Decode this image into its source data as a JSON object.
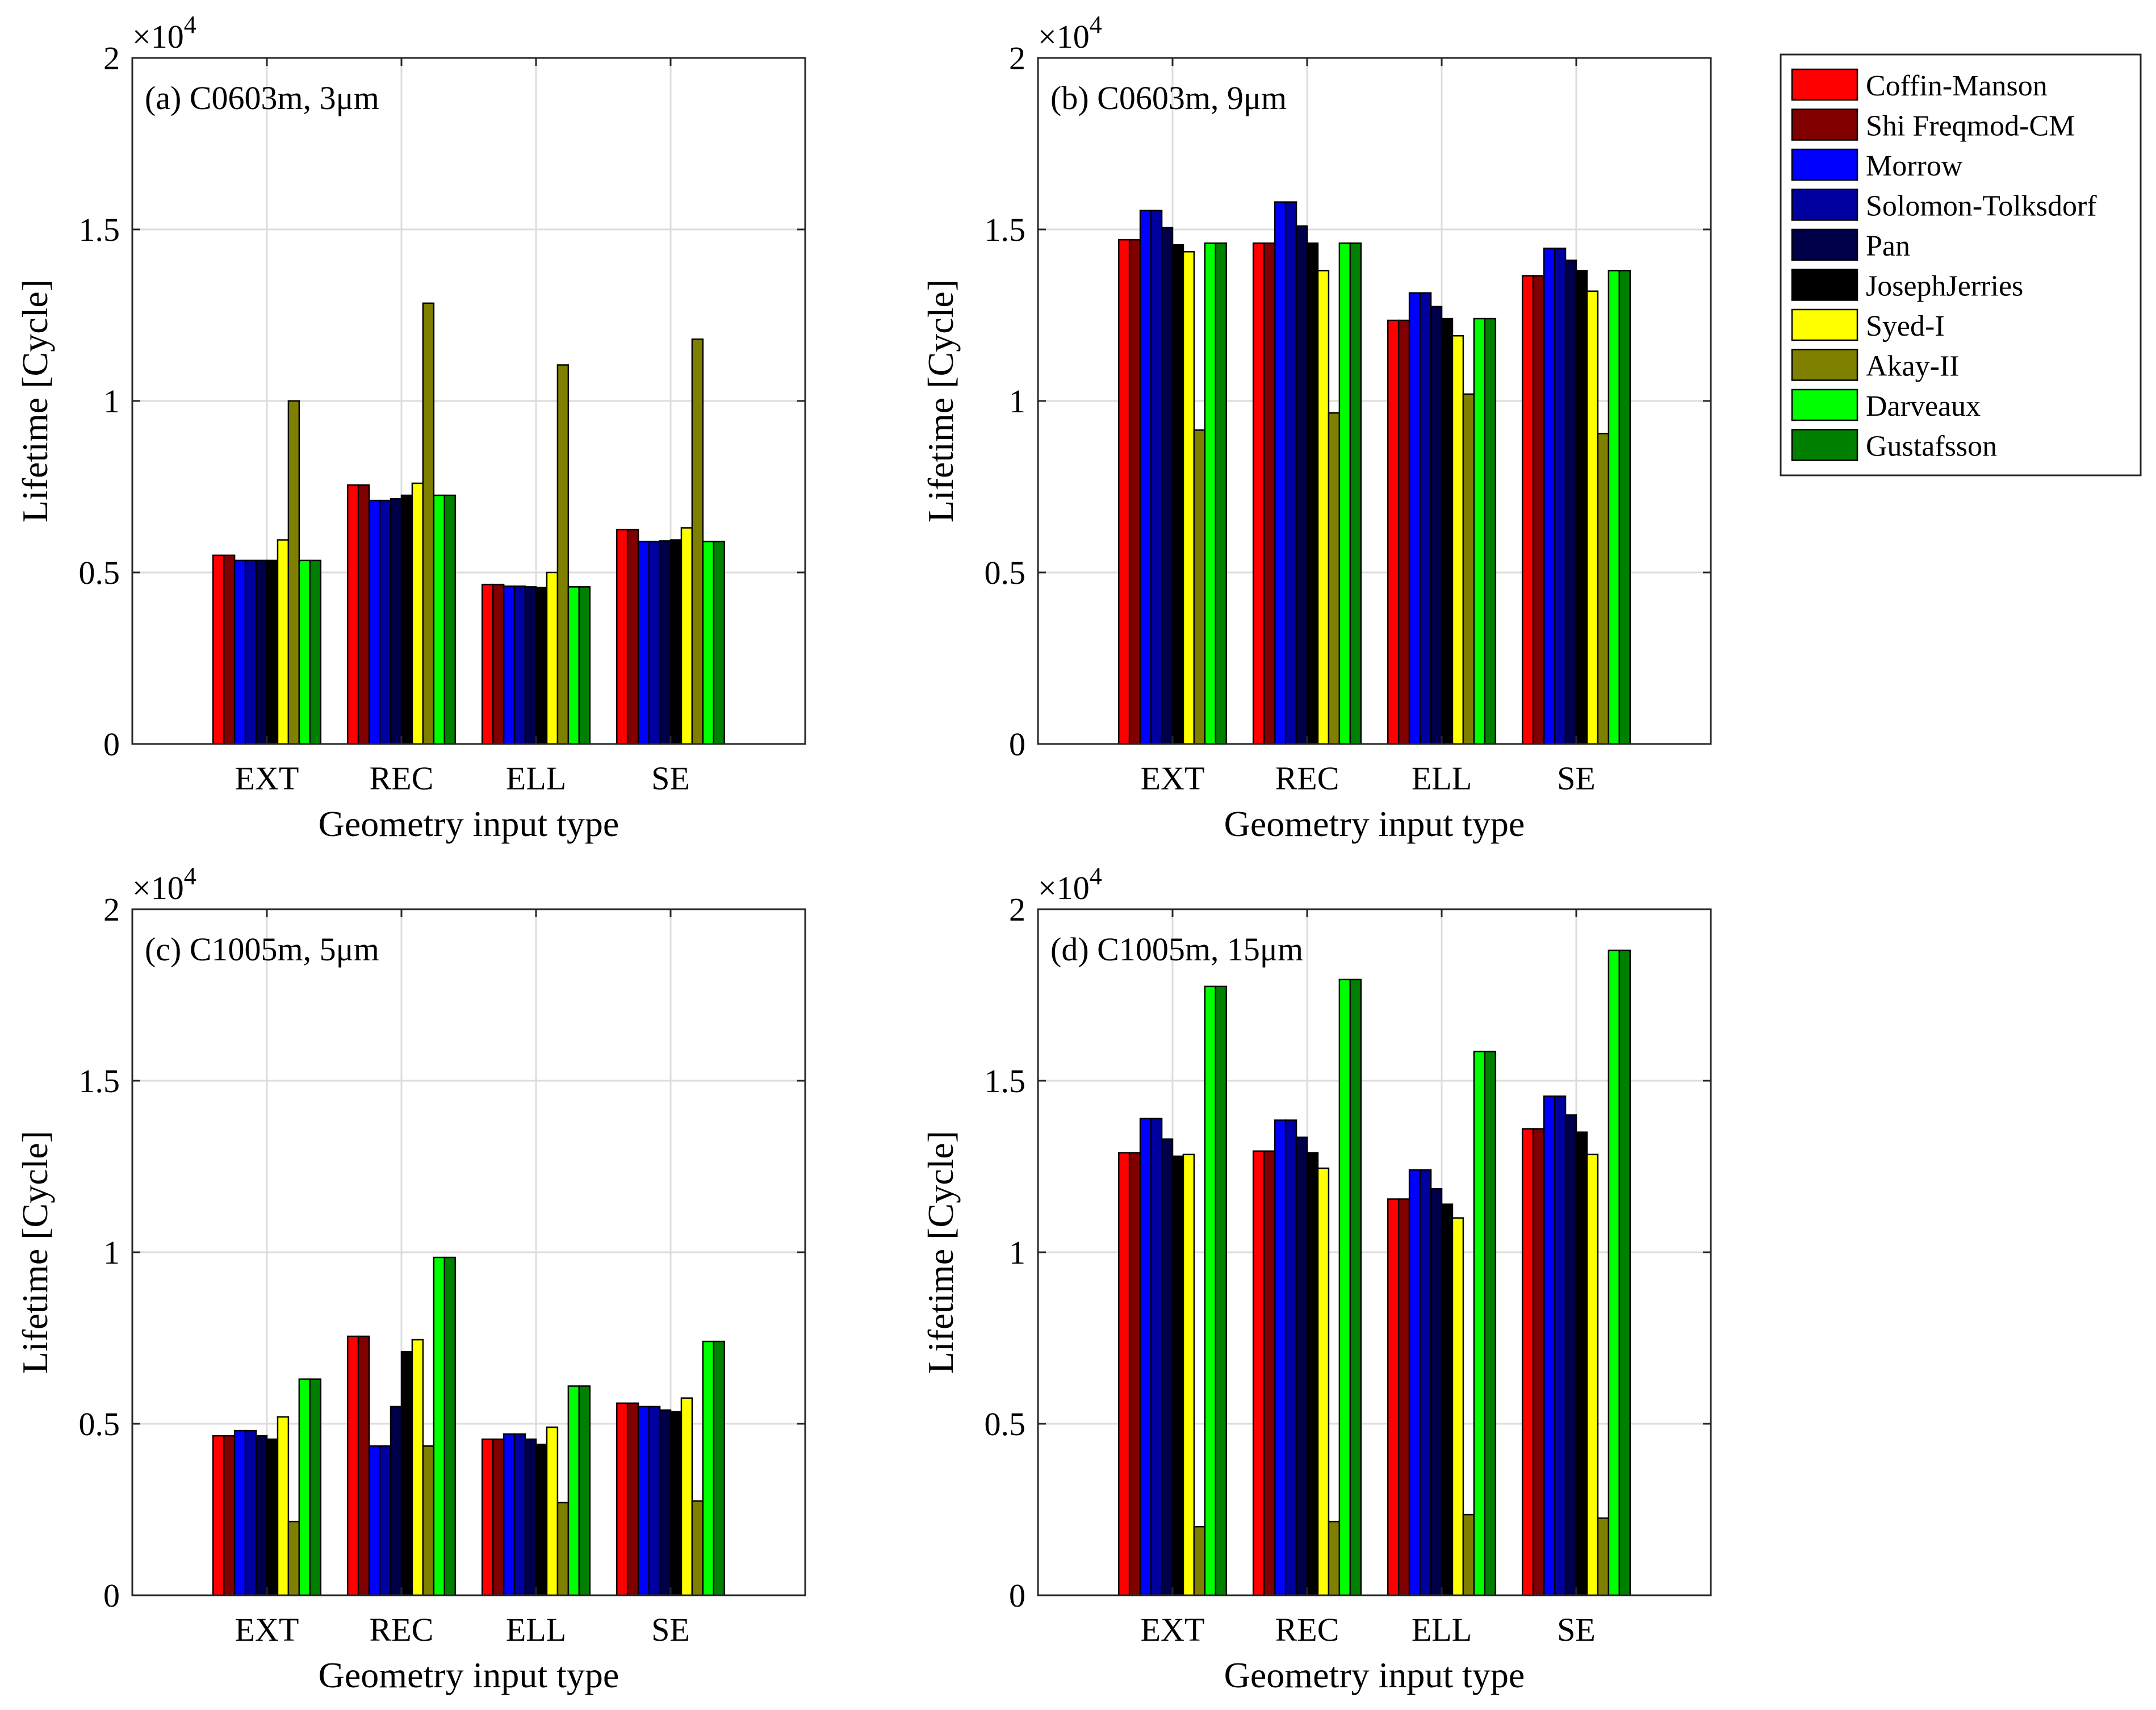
{
  "figure": {
    "legend": {
      "entries": [
        {
          "name": "Coffin-Manson",
          "color": "#ff0000"
        },
        {
          "name": "Shi Freqmod-CM",
          "color": "#800000"
        },
        {
          "name": "Morrow",
          "color": "#0000ff"
        },
        {
          "name": "Solomon-Tolksdorf",
          "color": "#0000a0"
        },
        {
          "name": "Pan",
          "color": "#00004a"
        },
        {
          "name": "JosephJerries",
          "color": "#000000"
        },
        {
          "name": "Syed-I",
          "color": "#ffff00"
        },
        {
          "name": "Akay-II",
          "color": "#808000"
        },
        {
          "name": "Darveaux",
          "color": "#00ff00"
        },
        {
          "name": "Gustafsson",
          "color": "#008000"
        }
      ]
    }
  },
  "chart_data": [
    {
      "type": "bar",
      "title": "(a) C0603m, 3μm",
      "xlabel": "Geometry input type",
      "ylabel": "Lifetime [Cycle]",
      "exponent_label": "×10",
      "exponent": "4",
      "categories": [
        "EXT",
        "REC",
        "ELL",
        "SE"
      ],
      "ylim": [
        0,
        2
      ],
      "yticks": [
        "0",
        "0.5",
        "1",
        "1.5",
        "2"
      ],
      "grid": true,
      "series": [
        {
          "name": "Coffin-Manson",
          "values": [
            0.55,
            0.755,
            0.465,
            0.625
          ]
        },
        {
          "name": "Shi Freqmod-CM",
          "values": [
            0.55,
            0.755,
            0.465,
            0.625
          ]
        },
        {
          "name": "Morrow",
          "values": [
            0.535,
            0.71,
            0.46,
            0.59
          ]
        },
        {
          "name": "Solomon-Tolksdorf",
          "values": [
            0.535,
            0.71,
            0.46,
            0.59
          ]
        },
        {
          "name": "Pan",
          "values": [
            0.535,
            0.715,
            0.458,
            0.592
          ]
        },
        {
          "name": "JosephJerries",
          "values": [
            0.535,
            0.725,
            0.456,
            0.595
          ]
        },
        {
          "name": "Syed-I",
          "values": [
            0.595,
            0.76,
            0.5,
            0.63
          ]
        },
        {
          "name": "Akay-II",
          "values": [
            1.0,
            1.285,
            1.105,
            1.18
          ]
        },
        {
          "name": "Darveaux",
          "values": [
            0.535,
            0.725,
            0.458,
            0.59
          ]
        },
        {
          "name": "Gustafsson",
          "values": [
            0.535,
            0.725,
            0.458,
            0.59
          ]
        }
      ]
    },
    {
      "type": "bar",
      "title": "(b) C0603m, 9μm",
      "xlabel": "Geometry input type",
      "ylabel": "Lifetime [Cycle]",
      "exponent_label": "×10",
      "exponent": "4",
      "categories": [
        "EXT",
        "REC",
        "ELL",
        "SE"
      ],
      "ylim": [
        0,
        2
      ],
      "yticks": [
        "0",
        "0.5",
        "1",
        "1.5",
        "2"
      ],
      "grid": true,
      "series": [
        {
          "name": "Coffin-Manson",
          "values": [
            1.47,
            1.46,
            1.235,
            1.365
          ]
        },
        {
          "name": "Shi Freqmod-CM",
          "values": [
            1.47,
            1.46,
            1.235,
            1.365
          ]
        },
        {
          "name": "Morrow",
          "values": [
            1.555,
            1.58,
            1.315,
            1.445
          ]
        },
        {
          "name": "Solomon-Tolksdorf",
          "values": [
            1.555,
            1.58,
            1.315,
            1.445
          ]
        },
        {
          "name": "Pan",
          "values": [
            1.505,
            1.51,
            1.275,
            1.41
          ]
        },
        {
          "name": "JosephJerries",
          "values": [
            1.455,
            1.46,
            1.24,
            1.38
          ]
        },
        {
          "name": "Syed-I",
          "values": [
            1.435,
            1.38,
            1.19,
            1.32
          ]
        },
        {
          "name": "Akay-II",
          "values": [
            0.915,
            0.965,
            1.02,
            0.905
          ]
        },
        {
          "name": "Darveaux",
          "values": [
            1.46,
            1.46,
            1.24,
            1.38
          ]
        },
        {
          "name": "Gustafsson",
          "values": [
            1.46,
            1.46,
            1.24,
            1.38
          ]
        }
      ]
    },
    {
      "type": "bar",
      "title": "(c) C1005m, 5μm",
      "xlabel": "Geometry input type",
      "ylabel": "Lifetime [Cycle]",
      "exponent_label": "×10",
      "exponent": "4",
      "categories": [
        "EXT",
        "REC",
        "ELL",
        "SE"
      ],
      "ylim": [
        0,
        2
      ],
      "yticks": [
        "0",
        "0.5",
        "1",
        "1.5",
        "2"
      ],
      "grid": true,
      "series": [
        {
          "name": "Coffin-Manson",
          "values": [
            0.465,
            0.755,
            0.455,
            0.56
          ]
        },
        {
          "name": "Shi Freqmod-CM",
          "values": [
            0.465,
            0.755,
            0.455,
            0.56
          ]
        },
        {
          "name": "Morrow",
          "values": [
            0.48,
            0.435,
            0.47,
            0.55
          ]
        },
        {
          "name": "Solomon-Tolksdorf",
          "values": [
            0.48,
            0.435,
            0.47,
            0.55
          ]
        },
        {
          "name": "Pan",
          "values": [
            0.465,
            0.55,
            0.455,
            0.54
          ]
        },
        {
          "name": "JosephJerries",
          "values": [
            0.455,
            0.71,
            0.44,
            0.535
          ]
        },
        {
          "name": "Syed-I",
          "values": [
            0.52,
            0.745,
            0.49,
            0.575
          ]
        },
        {
          "name": "Akay-II",
          "values": [
            0.215,
            0.435,
            0.27,
            0.275
          ]
        },
        {
          "name": "Darveaux",
          "values": [
            0.63,
            0.985,
            0.61,
            0.74
          ]
        },
        {
          "name": "Gustafsson",
          "values": [
            0.63,
            0.985,
            0.61,
            0.74
          ]
        }
      ]
    },
    {
      "type": "bar",
      "title": "(d) C1005m,  15μm",
      "xlabel": "Geometry input type",
      "ylabel": "Lifetime [Cycle]",
      "exponent_label": "×10",
      "exponent": "4",
      "categories": [
        "EXT",
        "REC",
        "ELL",
        "SE"
      ],
      "ylim": [
        0,
        2
      ],
      "yticks": [
        "0",
        "0.5",
        "1",
        "1.5",
        "2"
      ],
      "grid": true,
      "series": [
        {
          "name": "Coffin-Manson",
          "values": [
            1.29,
            1.295,
            1.155,
            1.36
          ]
        },
        {
          "name": "Shi Freqmod-CM",
          "values": [
            1.29,
            1.295,
            1.155,
            1.36
          ]
        },
        {
          "name": "Morrow",
          "values": [
            1.39,
            1.385,
            1.24,
            1.455
          ]
        },
        {
          "name": "Solomon-Tolksdorf",
          "values": [
            1.39,
            1.385,
            1.24,
            1.455
          ]
        },
        {
          "name": "Pan",
          "values": [
            1.33,
            1.335,
            1.185,
            1.4
          ]
        },
        {
          "name": "JosephJerries",
          "values": [
            1.28,
            1.29,
            1.14,
            1.35
          ]
        },
        {
          "name": "Syed-I",
          "values": [
            1.285,
            1.245,
            1.1,
            1.285
          ]
        },
        {
          "name": "Akay-II",
          "values": [
            0.2,
            0.215,
            0.235,
            0.225
          ]
        },
        {
          "name": "Darveaux",
          "values": [
            1.775,
            1.795,
            1.585,
            1.88
          ]
        },
        {
          "name": "Gustafsson",
          "values": [
            1.775,
            1.795,
            1.585,
            1.88
          ]
        }
      ]
    }
  ]
}
